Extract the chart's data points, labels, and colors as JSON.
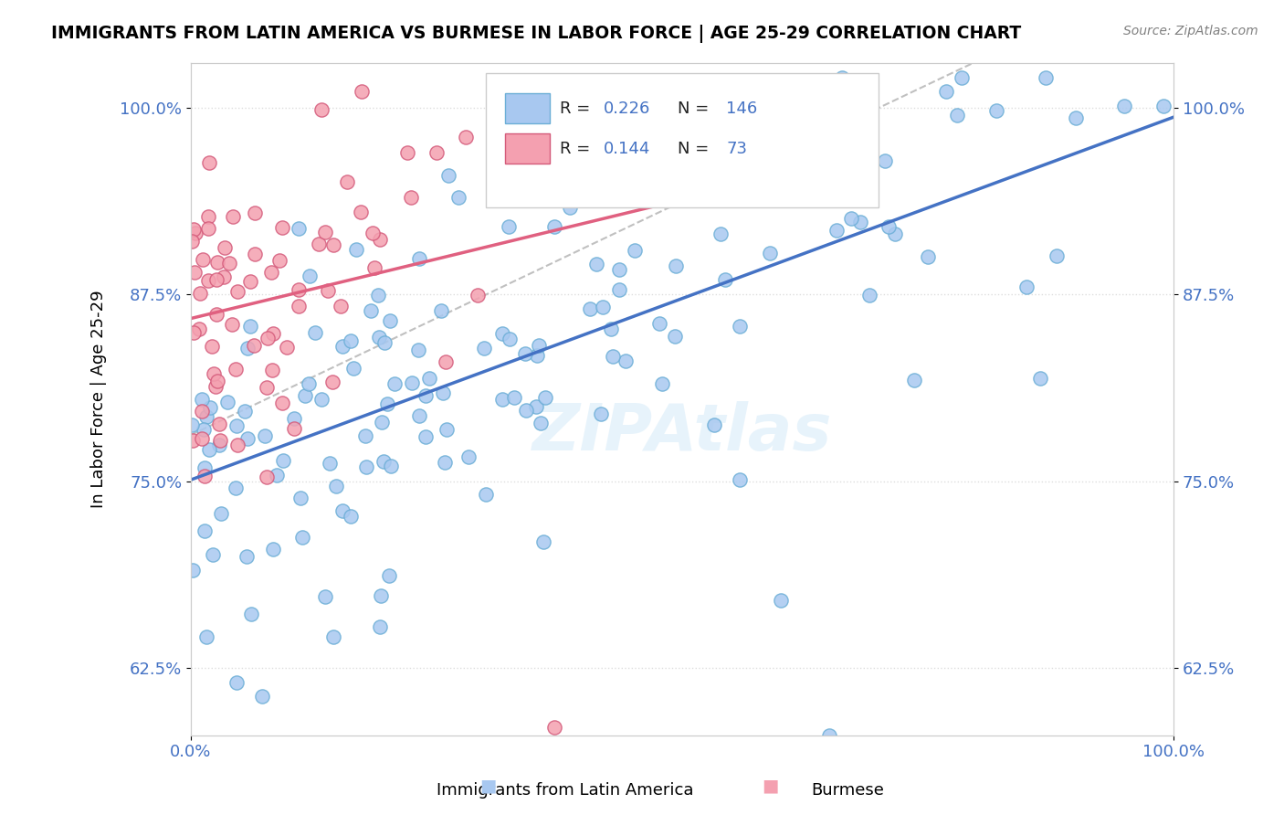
{
  "title": "IMMIGRANTS FROM LATIN AMERICA VS BURMESE IN LABOR FORCE | AGE 25-29 CORRELATION CHART",
  "source": "Source: ZipAtlas.com",
  "xlabel": "",
  "ylabel": "In Labor Force | Age 25-29",
  "xlim": [
    0.0,
    1.0
  ],
  "ylim": [
    0.58,
    1.03
  ],
  "yticks": [
    0.625,
    0.75,
    0.875,
    1.0
  ],
  "ytick_labels": [
    "62.5%",
    "75.0%",
    "87.5%",
    "100.0%"
  ],
  "xticks": [
    0.0,
    1.0
  ],
  "xtick_labels": [
    "0.0%",
    "100.0%"
  ],
  "blue_R": 0.226,
  "blue_N": 146,
  "pink_R": 0.144,
  "pink_N": 73,
  "blue_color": "#a8c8f0",
  "pink_color": "#f4a0b0",
  "blue_edge_color": "#6baed6",
  "pink_edge_color": "#d45a7a",
  "trend_color_blue": "#4472c4",
  "trend_color_pink": "#e06080",
  "trend_color_gray": "#c0c0c0",
  "legend_blue_label": "Immigrants from Latin America",
  "legend_pink_label": "Burmese",
  "watermark": "ZIPAtlas",
  "background_color": "#ffffff",
  "grid_color": "#dddddd",
  "title_color": "#000000",
  "axis_label_color": "#000000",
  "tick_color": "#4472c4",
  "source_color": "#808080"
}
